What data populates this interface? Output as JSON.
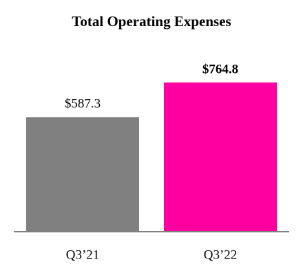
{
  "chart_data": {
    "type": "bar",
    "title": "Total Operating Expenses",
    "categories": [
      "Q3’21",
      "Q3’22"
    ],
    "values": [
      587.3,
      764.8
    ],
    "value_labels": [
      "$587.3",
      "$764.8"
    ],
    "value_label_bold": [
      false,
      true
    ],
    "colors": [
      "#808080",
      "#ff00a0"
    ],
    "ylim": [
      0,
      800
    ]
  }
}
